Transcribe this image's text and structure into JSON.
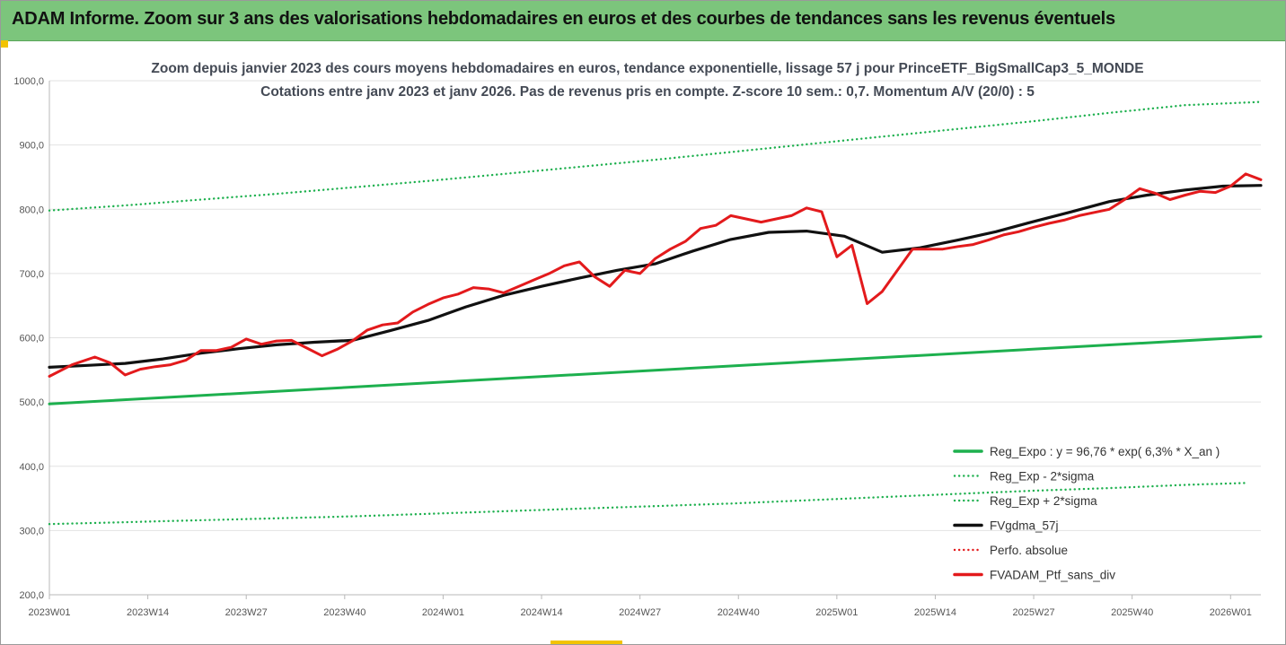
{
  "banner": {
    "title": "ADAM Informe. Zoom sur 3 ans des valorisations hebdomadaires en euros et des courbes de tendances sans les revenus éventuels"
  },
  "colors": {
    "banner_bg": "#7cc57c",
    "reg_green": "#1db04e",
    "price_red": "#e31a1c",
    "trend_black": "#111111",
    "accent_yellow": "#f2c300"
  },
  "chart_data": {
    "type": "line",
    "title_lines": [
      "Zoom depuis janvier 2023 des cours moyens hebdomadaires  en euros, tendance exponentielle, lissage 57 j pour PrinceETF_BigSmallCap3_5_MONDE",
      "Cotations entre janv 2023 et janv 2026. Pas de revenus pris en compte. Z-score 10 sem.: 0,7. Momentum A/V (20/0) : 5"
    ],
    "x_categories": [
      "2023W01",
      "2023W14",
      "2023W27",
      "2023W40",
      "2024W01",
      "2024W14",
      "2024W27",
      "2024W40",
      "2025W01",
      "2025W14",
      "2025W27",
      "2025W40",
      "2026W01"
    ],
    "x_range_weeks": [
      0,
      160
    ],
    "y_ticks": [
      "200,0",
      "300,0",
      "400,0",
      "500,0",
      "600,0",
      "700,0",
      "800,0",
      "900,0",
      "1000,0"
    ],
    "ylim": [
      200,
      1000
    ],
    "grid": "horizontal",
    "legend_position": "bottom-right",
    "series": [
      {
        "name": "Reg_Expo : y = 96,76 * exp( 6,3% *  X_an )",
        "style": "solid",
        "color": "#1db04e",
        "x": [
          0,
          160
        ],
        "y": [
          497,
          602
        ]
      },
      {
        "name": "Reg_Exp - 2*sigma",
        "style": "dotted",
        "color": "#1db04e",
        "x": [
          0,
          10,
          20,
          30,
          40,
          50,
          60,
          70,
          80,
          90,
          100,
          110,
          120,
          130,
          140,
          150,
          158
        ],
        "y": [
          310,
          313,
          316,
          319,
          322,
          326,
          330,
          334,
          338,
          342,
          347,
          352,
          357,
          362,
          366,
          371,
          374
        ]
      },
      {
        "name": "Reg_Exp + 2*sigma",
        "style": "dotted",
        "color": "#1db04e",
        "x": [
          0,
          10,
          20,
          30,
          40,
          50,
          60,
          70,
          80,
          90,
          100,
          110,
          120,
          130,
          140,
          150,
          160
        ],
        "y": [
          798,
          806,
          815,
          824,
          834,
          844,
          855,
          866,
          877,
          889,
          901,
          913,
          925,
          937,
          950,
          962,
          967
        ]
      },
      {
        "name": "FVgdma_57j",
        "style": "solid",
        "color": "#111111",
        "x": [
          0,
          5,
          10,
          15,
          20,
          25,
          30,
          35,
          40,
          45,
          50,
          55,
          60,
          65,
          70,
          75,
          80,
          85,
          90,
          95,
          100,
          105,
          110,
          115,
          120,
          125,
          130,
          135,
          140,
          145,
          150,
          155,
          160
        ],
        "y": [
          554,
          557,
          560,
          567,
          576,
          583,
          589,
          593,
          596,
          611,
          627,
          648,
          666,
          680,
          693,
          705,
          715,
          735,
          753,
          764,
          766,
          758,
          733,
          740,
          752,
          765,
          781,
          796,
          812,
          822,
          830,
          836,
          837
        ]
      },
      {
        "name": "Perfo. absolue",
        "style": "dotted",
        "color": "#e31a1c",
        "x": [],
        "y": []
      },
      {
        "name": "FVADAM_Ptf_sans_div",
        "style": "solid",
        "color": "#e31a1c",
        "x": [
          0,
          3,
          6,
          8,
          10,
          12,
          14,
          16,
          18,
          20,
          22,
          24,
          26,
          28,
          30,
          32,
          34,
          36,
          38,
          40,
          42,
          44,
          46,
          48,
          50,
          52,
          54,
          56,
          58,
          60,
          62,
          64,
          66,
          68,
          70,
          72,
          74,
          76,
          78,
          80,
          82,
          84,
          86,
          88,
          90,
          92,
          94,
          96,
          98,
          100,
          102,
          104,
          106,
          108,
          110,
          112,
          114,
          116,
          118,
          120,
          122,
          124,
          126,
          128,
          130,
          132,
          134,
          136,
          138,
          140,
          142,
          144,
          146,
          148,
          150,
          152,
          154,
          156,
          158,
          160
        ],
        "y": [
          540,
          558,
          570,
          561,
          542,
          551,
          555,
          558,
          565,
          580,
          580,
          585,
          598,
          590,
          595,
          596,
          584,
          572,
          582,
          595,
          612,
          620,
          623,
          640,
          652,
          662,
          668,
          678,
          676,
          670,
          680,
          690,
          700,
          712,
          718,
          695,
          680,
          705,
          700,
          723,
          738,
          750,
          770,
          775,
          790,
          785,
          780,
          785,
          790,
          802,
          796,
          726,
          744,
          653,
          672,
          705,
          738,
          738,
          738,
          742,
          745,
          752,
          760,
          765,
          772,
          778,
          783,
          790,
          795,
          800,
          815,
          832,
          825,
          815,
          822,
          828,
          826,
          836,
          855,
          846
        ]
      }
    ]
  }
}
